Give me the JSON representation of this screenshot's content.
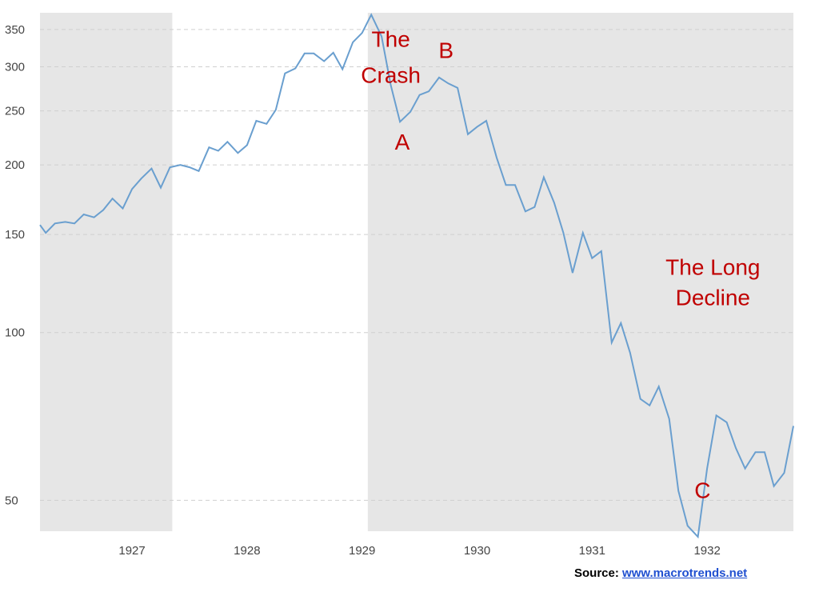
{
  "chart_data": {
    "type": "line",
    "title": "",
    "xlabel": "",
    "ylabel": "",
    "y_scale": "log",
    "ylim": [
      44,
      375
    ],
    "xlim": [
      1926.2,
      1932.75
    ],
    "grid": true,
    "colors": {
      "line": "#6a9fcf",
      "shade": "#e6e6e6",
      "grid": "#cfcfcf",
      "annotation": "#c00000"
    },
    "y_ticks": [
      350,
      300,
      250,
      200,
      150,
      100,
      50
    ],
    "x_ticks": [
      1927,
      1928,
      1929,
      1930,
      1931,
      1932
    ],
    "shaded_ranges": [
      [
        1926.2,
        1927.35
      ],
      [
        1929.05,
        1932.75
      ]
    ],
    "series": [
      {
        "x": [
          1926.2,
          1926.25,
          1926.33,
          1926.42,
          1926.5,
          1926.58,
          1926.67,
          1926.75,
          1926.83,
          1926.92,
          1927.0,
          1927.08,
          1927.17,
          1927.25,
          1927.33,
          1927.42,
          1927.5,
          1927.58,
          1927.67,
          1927.75,
          1927.83,
          1927.92,
          1928.0,
          1928.08,
          1928.17,
          1928.25,
          1928.33,
          1928.42,
          1928.5,
          1928.58,
          1928.67,
          1928.75,
          1928.83,
          1928.92,
          1929.0,
          1929.08,
          1929.17,
          1929.25,
          1929.33,
          1929.42,
          1929.5,
          1929.58,
          1929.67,
          1929.75,
          1929.83,
          1929.92,
          1930.0,
          1930.08,
          1930.17,
          1930.25,
          1930.33,
          1930.42,
          1930.5,
          1930.58,
          1930.67,
          1930.75,
          1930.83,
          1930.92,
          1931.0,
          1931.08,
          1931.17,
          1931.25,
          1931.33,
          1931.42,
          1931.5,
          1931.58,
          1931.67,
          1931.75,
          1931.83,
          1931.92,
          1932.0,
          1932.08,
          1932.17,
          1932.25,
          1932.33,
          1932.42,
          1932.5,
          1932.58,
          1932.67,
          1932.75
        ],
        "values": [
          156,
          151,
          157,
          158,
          157,
          163,
          161,
          166,
          174,
          167,
          181,
          189,
          197,
          182,
          198,
          200,
          198,
          195,
          215,
          212,
          220,
          210,
          217,
          240,
          237,
          251,
          292,
          298,
          317,
          317,
          307,
          318,
          297,
          332,
          345,
          372,
          340,
          278,
          239,
          249,
          267,
          271,
          287,
          280,
          275,
          227,
          234,
          240,
          206,
          184,
          184,
          165,
          168,
          190,
          171,
          151,
          128,
          151,
          136,
          140,
          96,
          104,
          92,
          76,
          74,
          80,
          70,
          52,
          45,
          43,
          57,
          71,
          69,
          62,
          57,
          61,
          61,
          53,
          56,
          68
        ]
      }
    ],
    "annotations": [
      {
        "text": "The",
        "x": 1929.25,
        "y": 326
      },
      {
        "text": "Crash",
        "x": 1929.25,
        "y": 281
      },
      {
        "text": "B",
        "x": 1929.73,
        "y": 311
      },
      {
        "text": "A",
        "x": 1929.35,
        "y": 213
      },
      {
        "text": "The Long",
        "x": 1932.05,
        "y": 127
      },
      {
        "text": "Decline",
        "x": 1932.05,
        "y": 112
      },
      {
        "text": "C",
        "x": 1931.96,
        "y": 50.5
      }
    ]
  },
  "source": {
    "label": "Source:",
    "link_text": "www.macrotrends.net"
  }
}
